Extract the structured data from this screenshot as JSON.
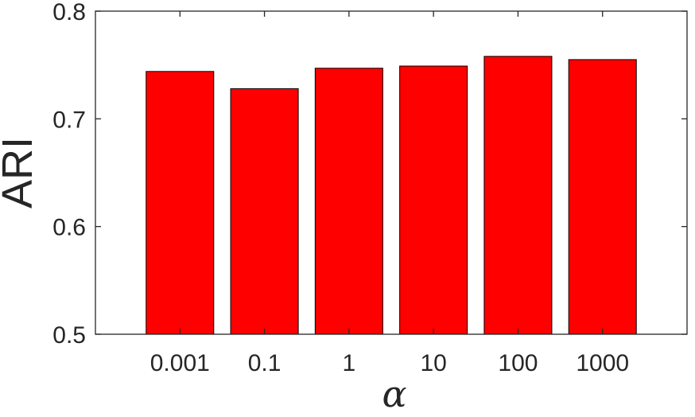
{
  "chart_data": {
    "type": "bar",
    "categories": [
      "0.001",
      "0.1",
      "1",
      "10",
      "100",
      "1000"
    ],
    "values": [
      0.744,
      0.728,
      0.747,
      0.749,
      0.758,
      0.755
    ],
    "xlabel": "α",
    "ylabel": "ARI",
    "ylim": [
      0.5,
      0.8
    ],
    "yticks": [
      0.5,
      0.6,
      0.7,
      0.8
    ],
    "ytick_labels": [
      "0.5",
      "0.6",
      "0.7",
      "0.8"
    ],
    "bar_color": "#ff0000",
    "bar_edge_color": "#000000",
    "grid": false,
    "box": true
  }
}
